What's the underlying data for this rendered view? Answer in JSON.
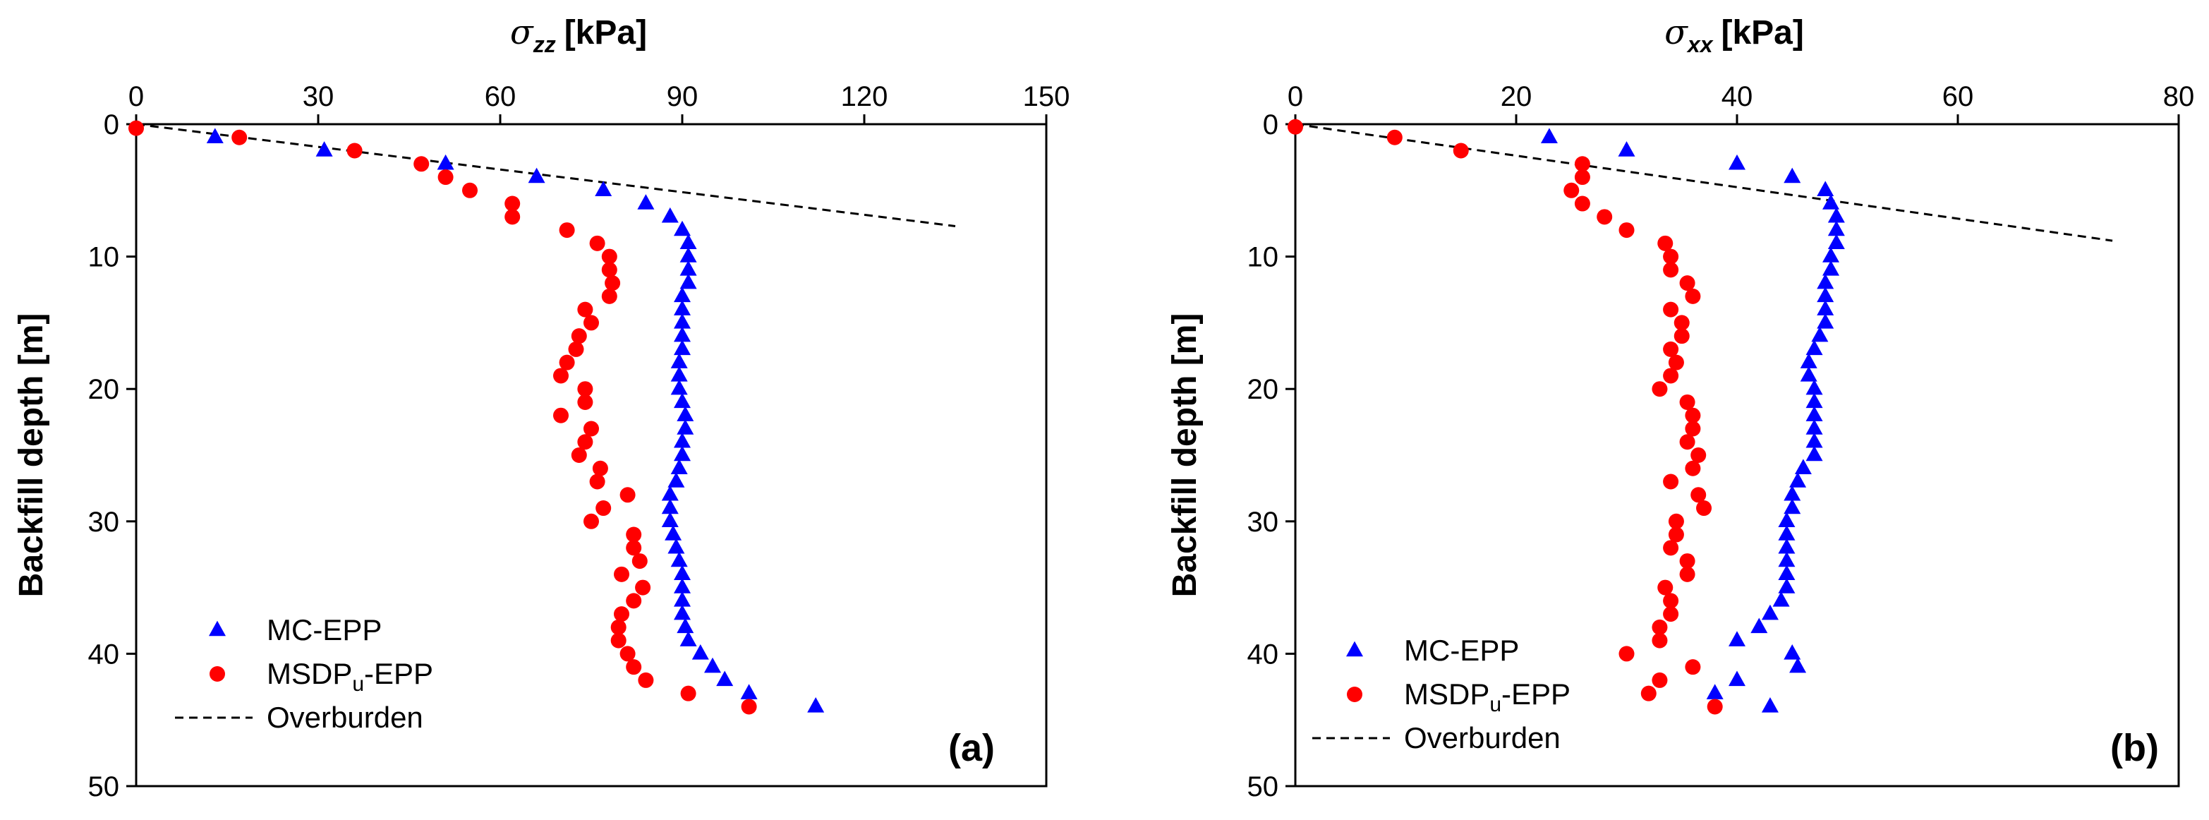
{
  "colors": {
    "mc": "#0000ff",
    "msdp": "#ff0000",
    "overburden": "#000000",
    "axis": "#000000"
  },
  "chart_data": [
    {
      "type": "scatter",
      "panel_label": "(a)",
      "xlabel": {
        "symbol": "σ",
        "sub": "zz",
        "unit": "[kPa]"
      },
      "ylabel": "Backfill depth [m]",
      "xlim": [
        0,
        150
      ],
      "ylim": [
        0,
        50
      ],
      "x_ticks": [
        0,
        30,
        60,
        90,
        120,
        150
      ],
      "y_ticks": [
        0,
        10,
        20,
        30,
        40,
        50
      ],
      "y_inverted": true,
      "legend": {
        "position": "bottom-left",
        "entries": [
          {
            "key": "mc",
            "label": "MC-EPP"
          },
          {
            "key": "msdp",
            "label_main": "MSDP",
            "label_sub": "u",
            "label_rest": "-EPP"
          },
          {
            "key": "overburden",
            "label": "Overburden"
          }
        ]
      },
      "series": [
        {
          "key": "mc",
          "name": "MC-EPP",
          "marker": "triangle",
          "points": [
            [
              13,
              1
            ],
            [
              31,
              2
            ],
            [
              51,
              3
            ],
            [
              66,
              4
            ],
            [
              77,
              5
            ],
            [
              84,
              6
            ],
            [
              88,
              7
            ],
            [
              90,
              8
            ],
            [
              91,
              9
            ],
            [
              91,
              10
            ],
            [
              91,
              11
            ],
            [
              91,
              12
            ],
            [
              90,
              13
            ],
            [
              90,
              14
            ],
            [
              90,
              15
            ],
            [
              90,
              16
            ],
            [
              90,
              17
            ],
            [
              89.5,
              18
            ],
            [
              89.5,
              19
            ],
            [
              89.5,
              20
            ],
            [
              90,
              21
            ],
            [
              90.5,
              22
            ],
            [
              90.5,
              23
            ],
            [
              90,
              24
            ],
            [
              90,
              25
            ],
            [
              89.5,
              26
            ],
            [
              89,
              27
            ],
            [
              88,
              28
            ],
            [
              88,
              29
            ],
            [
              88,
              30
            ],
            [
              88.5,
              31
            ],
            [
              89,
              32
            ],
            [
              89.5,
              33
            ],
            [
              90,
              34
            ],
            [
              90,
              35
            ],
            [
              90,
              36
            ],
            [
              90,
              37
            ],
            [
              90.5,
              38
            ],
            [
              91,
              39
            ],
            [
              93,
              40
            ],
            [
              95,
              41
            ],
            [
              97,
              42
            ],
            [
              101,
              43
            ],
            [
              112,
              44
            ]
          ]
        },
        {
          "key": "msdp",
          "name": "MSDPu-EPP",
          "marker": "circle",
          "points": [
            [
              0,
              0.3
            ],
            [
              17,
              1
            ],
            [
              36,
              2
            ],
            [
              47,
              3
            ],
            [
              51,
              4
            ],
            [
              55,
              5
            ],
            [
              62,
              6
            ],
            [
              62,
              7
            ],
            [
              71,
              8
            ],
            [
              76,
              9
            ],
            [
              78,
              10
            ],
            [
              78,
              11
            ],
            [
              78.5,
              12
            ],
            [
              78,
              13
            ],
            [
              74,
              14
            ],
            [
              75,
              15
            ],
            [
              73,
              16
            ],
            [
              72.5,
              17
            ],
            [
              71,
              18
            ],
            [
              70,
              19
            ],
            [
              74,
              20
            ],
            [
              74,
              21
            ],
            [
              70,
              22
            ],
            [
              75,
              23
            ],
            [
              74,
              24
            ],
            [
              73,
              25
            ],
            [
              76.5,
              26
            ],
            [
              76,
              27
            ],
            [
              81,
              28
            ],
            [
              77,
              29
            ],
            [
              75,
              30
            ],
            [
              82,
              31
            ],
            [
              82,
              32
            ],
            [
              83,
              33
            ],
            [
              80,
              34
            ],
            [
              83.5,
              35
            ],
            [
              82,
              36
            ],
            [
              80,
              37
            ],
            [
              79.5,
              38
            ],
            [
              79.5,
              39
            ],
            [
              81,
              40
            ],
            [
              82,
              41
            ],
            [
              84,
              42
            ],
            [
              91,
              43
            ],
            [
              101,
              44
            ]
          ]
        }
      ],
      "overburden": {
        "x": [
          0,
          135
        ],
        "y": [
          0,
          7.7
        ]
      }
    },
    {
      "type": "scatter",
      "panel_label": "(b)",
      "xlabel": {
        "symbol": "σ",
        "sub": "xx",
        "unit": "[kPa]"
      },
      "ylabel": "Backfill depth [m]",
      "xlim": [
        0,
        80
      ],
      "ylim": [
        0,
        50
      ],
      "x_ticks": [
        0,
        20,
        40,
        60,
        80
      ],
      "y_ticks": [
        0,
        10,
        20,
        30,
        40,
        50
      ],
      "y_inverted": true,
      "legend": {
        "position": "bottom-left",
        "entries": [
          {
            "key": "mc",
            "label": "MC-EPP"
          },
          {
            "key": "msdp",
            "label_main": "MSDP",
            "label_sub": "u",
            "label_rest": "-EPP"
          },
          {
            "key": "overburden",
            "label": "Overburden"
          }
        ]
      },
      "series": [
        {
          "key": "mc",
          "name": "MC-EPP",
          "marker": "triangle",
          "points": [
            [
              23,
              1
            ],
            [
              30,
              2
            ],
            [
              40,
              3
            ],
            [
              45,
              4
            ],
            [
              48,
              5
            ],
            [
              48.5,
              6
            ],
            [
              49,
              7
            ],
            [
              49,
              8
            ],
            [
              49,
              9
            ],
            [
              48.5,
              10
            ],
            [
              48.5,
              11
            ],
            [
              48,
              12
            ],
            [
              48,
              13
            ],
            [
              48,
              14
            ],
            [
              48,
              15
            ],
            [
              47.5,
              16
            ],
            [
              47,
              17
            ],
            [
              46.5,
              18
            ],
            [
              46.5,
              19
            ],
            [
              47,
              20
            ],
            [
              47,
              21
            ],
            [
              47,
              22
            ],
            [
              47,
              23
            ],
            [
              47,
              24
            ],
            [
              47,
              25
            ],
            [
              46,
              26
            ],
            [
              45.5,
              27
            ],
            [
              45,
              28
            ],
            [
              45,
              29
            ],
            [
              44.5,
              30
            ],
            [
              44.5,
              31
            ],
            [
              44.5,
              32
            ],
            [
              44.5,
              33
            ],
            [
              44.5,
              34
            ],
            [
              44.5,
              35
            ],
            [
              44,
              36
            ],
            [
              43,
              37
            ],
            [
              42,
              38
            ],
            [
              40,
              39
            ],
            [
              45,
              40
            ],
            [
              45.5,
              41
            ],
            [
              40,
              42
            ],
            [
              38,
              43
            ],
            [
              43,
              44
            ]
          ]
        },
        {
          "key": "msdp",
          "name": "MSDPu-EPP",
          "marker": "circle",
          "points": [
            [
              0,
              0.2
            ],
            [
              9,
              1
            ],
            [
              15,
              2
            ],
            [
              26,
              3
            ],
            [
              26,
              4
            ],
            [
              25,
              5
            ],
            [
              26,
              6
            ],
            [
              28,
              7
            ],
            [
              30,
              8
            ],
            [
              33.5,
              9
            ],
            [
              34,
              10
            ],
            [
              34,
              11
            ],
            [
              35.5,
              12
            ],
            [
              36,
              13
            ],
            [
              34,
              14
            ],
            [
              35,
              15
            ],
            [
              35,
              16
            ],
            [
              34,
              17
            ],
            [
              34.5,
              18
            ],
            [
              34,
              19
            ],
            [
              33,
              20
            ],
            [
              35.5,
              21
            ],
            [
              36,
              22
            ],
            [
              36,
              23
            ],
            [
              35.5,
              24
            ],
            [
              36.5,
              25
            ],
            [
              36,
              26
            ],
            [
              34,
              27
            ],
            [
              36.5,
              28
            ],
            [
              37,
              29
            ],
            [
              34.5,
              30
            ],
            [
              34.5,
              31
            ],
            [
              34,
              32
            ],
            [
              35.5,
              33
            ],
            [
              35.5,
              34
            ],
            [
              33.5,
              35
            ],
            [
              34,
              36
            ],
            [
              34,
              37
            ],
            [
              33,
              38
            ],
            [
              33,
              39
            ],
            [
              30,
              40
            ],
            [
              36,
              41
            ],
            [
              33,
              42
            ],
            [
              32,
              43
            ],
            [
              38,
              44
            ]
          ]
        }
      ],
      "overburden": {
        "x": [
          0,
          74
        ],
        "y": [
          0,
          8.8
        ]
      }
    }
  ]
}
